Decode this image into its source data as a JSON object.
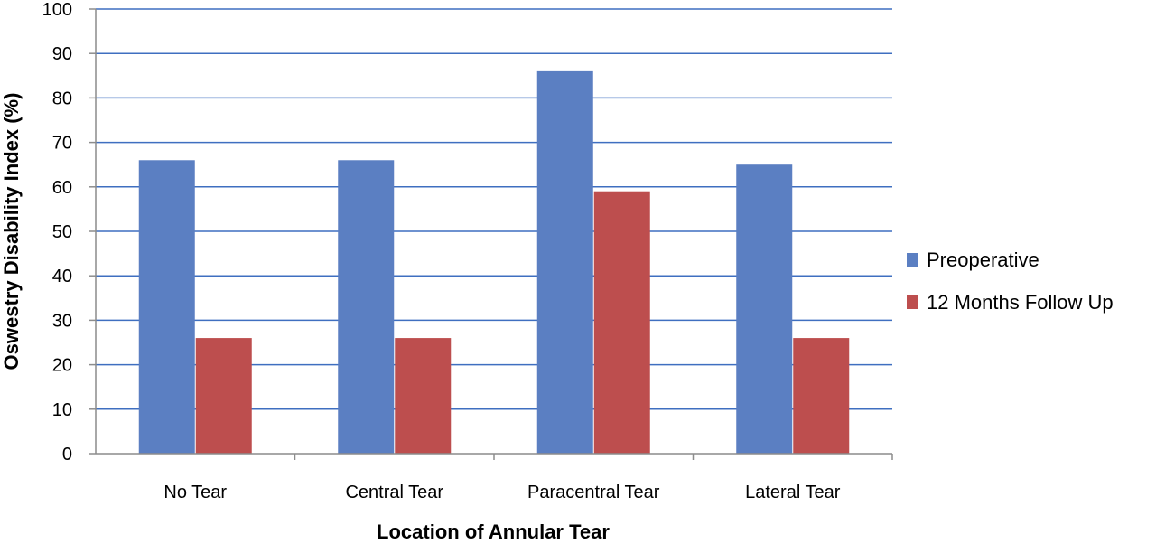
{
  "chart_data": {
    "type": "bar",
    "title": "",
    "xlabel": "Location of Annular Tear",
    "ylabel": "Oswestry Disability Index (%)",
    "categories": [
      "No Tear",
      "Central Tear",
      "Paracentral Tear",
      "Lateral Tear"
    ],
    "series": [
      {
        "name": "Preoperative",
        "color": "#5b7fc2",
        "values": [
          66,
          66,
          86,
          65
        ]
      },
      {
        "name": "12 Months Follow Up",
        "color": "#bd4e4e",
        "values": [
          26,
          26,
          59,
          26
        ]
      }
    ],
    "ylim": [
      0,
      100
    ],
    "yticks": [
      0,
      10,
      20,
      30,
      40,
      50,
      60,
      70,
      80,
      90,
      100
    ],
    "grid": true,
    "gridColor": "#3f6fc0",
    "legend": "right"
  }
}
